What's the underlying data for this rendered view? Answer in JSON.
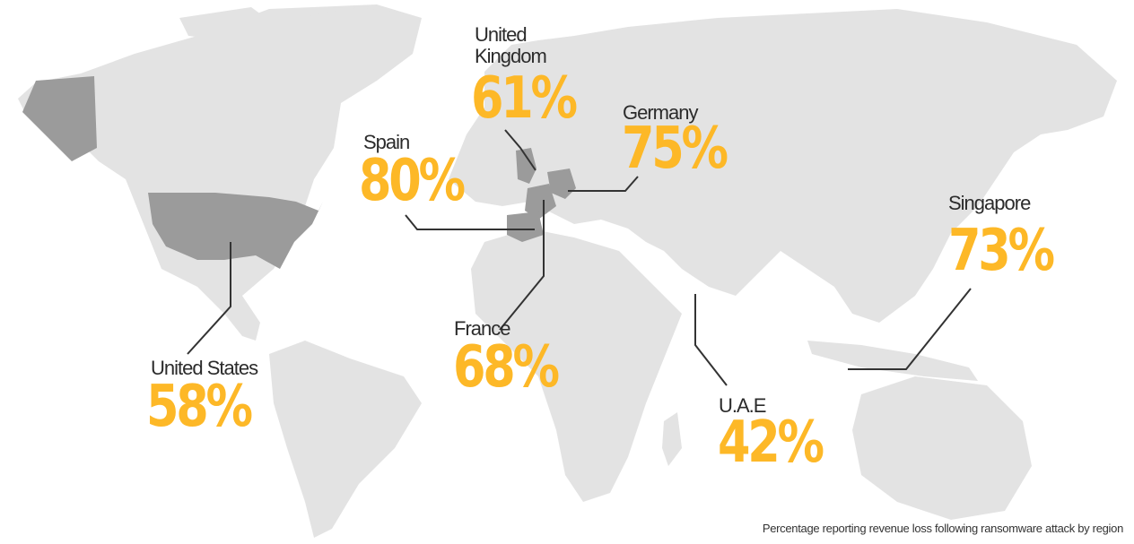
{
  "caption": "Percentage reporting revenue loss following ransomware attack by region",
  "colors": {
    "accent": "#fdb827",
    "land": "#e3e3e3",
    "highlight": "#9b9b9b",
    "text": "#2b2b2b"
  },
  "regions": {
    "united_kingdom": {
      "line1": "United",
      "line2": "Kingdom",
      "pct": "61%"
    },
    "germany": {
      "label": "Germany",
      "pct": "75%"
    },
    "spain": {
      "label": "Spain",
      "pct": "80%"
    },
    "singapore": {
      "label": "Singapore",
      "pct": "73%"
    },
    "france": {
      "label": "France",
      "pct": "68%"
    },
    "united_states": {
      "label": "United States",
      "pct": "58%"
    },
    "uae": {
      "label": "U.A.E",
      "pct": "42%"
    }
  }
}
